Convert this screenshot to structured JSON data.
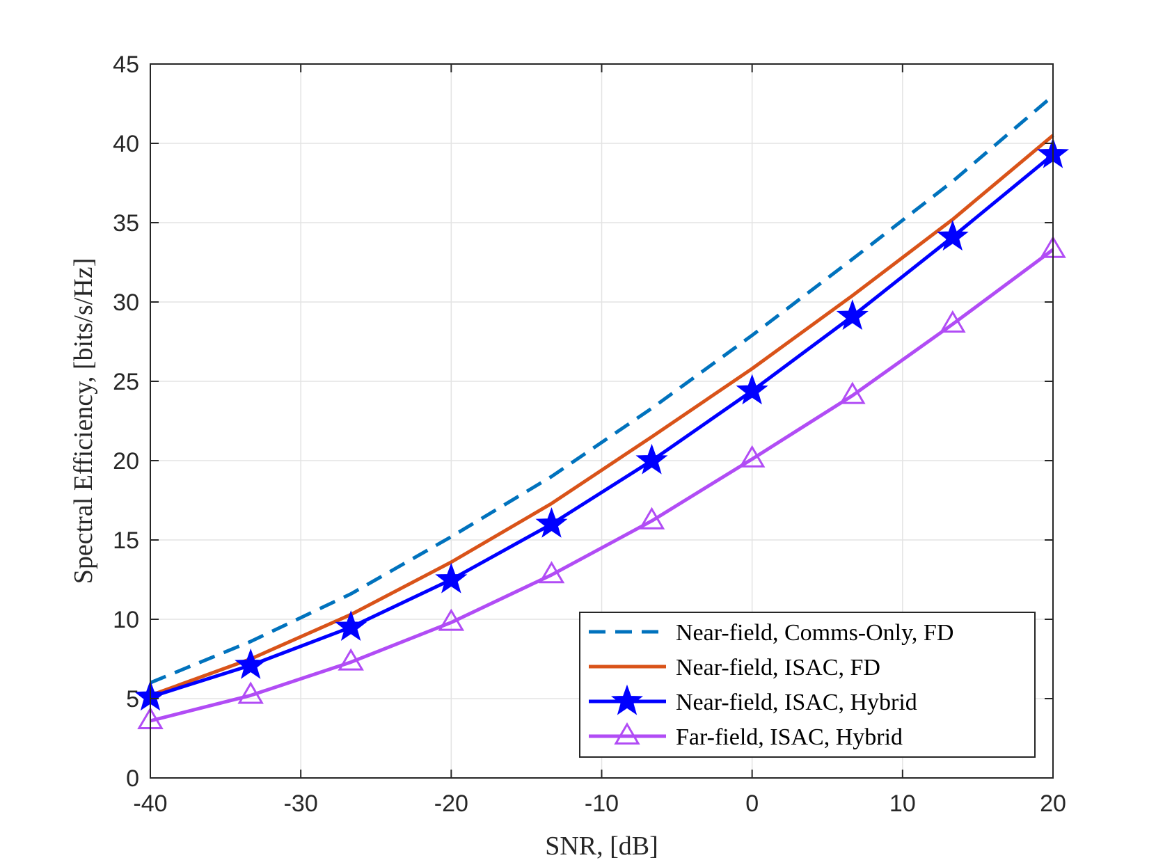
{
  "chart_data": {
    "type": "line",
    "title": "",
    "xlabel": "SNR, [dB]",
    "ylabel": "Spectral Efficiency, [bits/s/Hz]",
    "xlim": [
      -40,
      20
    ],
    "ylim": [
      0,
      45
    ],
    "xticks": [
      -40,
      -30,
      -20,
      -10,
      0,
      10,
      20
    ],
    "yticks": [
      0,
      5,
      10,
      15,
      20,
      25,
      30,
      35,
      40,
      45
    ],
    "grid": true,
    "legend_position": "bottom-right",
    "x": [
      -40,
      -33.33,
      -26.67,
      -20,
      -13.33,
      -6.67,
      0,
      6.67,
      13.33,
      20
    ],
    "series": [
      {
        "name": "Near-field, Comms-Only, FD",
        "color": "#0072BD",
        "line_style": "dashed",
        "marker": "none",
        "values": [
          6.0,
          8.6,
          11.6,
          15.2,
          19.0,
          23.3,
          27.9,
          32.7,
          37.6,
          43.0
        ]
      },
      {
        "name": "Near-field, ISAC, FD",
        "color": "#D95319",
        "line_style": "solid",
        "marker": "none",
        "values": [
          5.2,
          7.5,
          10.3,
          13.6,
          17.3,
          21.5,
          25.8,
          30.4,
          35.2,
          40.5
        ]
      },
      {
        "name": "Near-field, ISAC, Hybrid",
        "color": "#0000FF",
        "line_style": "solid",
        "marker": "star",
        "values": [
          5.1,
          7.1,
          9.5,
          12.5,
          16.0,
          20.0,
          24.4,
          29.1,
          34.1,
          39.3
        ]
      },
      {
        "name": "Far-field, ISAC, Hybrid",
        "color": "#B14CF5",
        "line_style": "solid",
        "marker": "triangle",
        "values": [
          3.6,
          5.2,
          7.3,
          9.8,
          12.8,
          16.2,
          20.1,
          24.1,
          28.6,
          33.3
        ]
      }
    ]
  }
}
